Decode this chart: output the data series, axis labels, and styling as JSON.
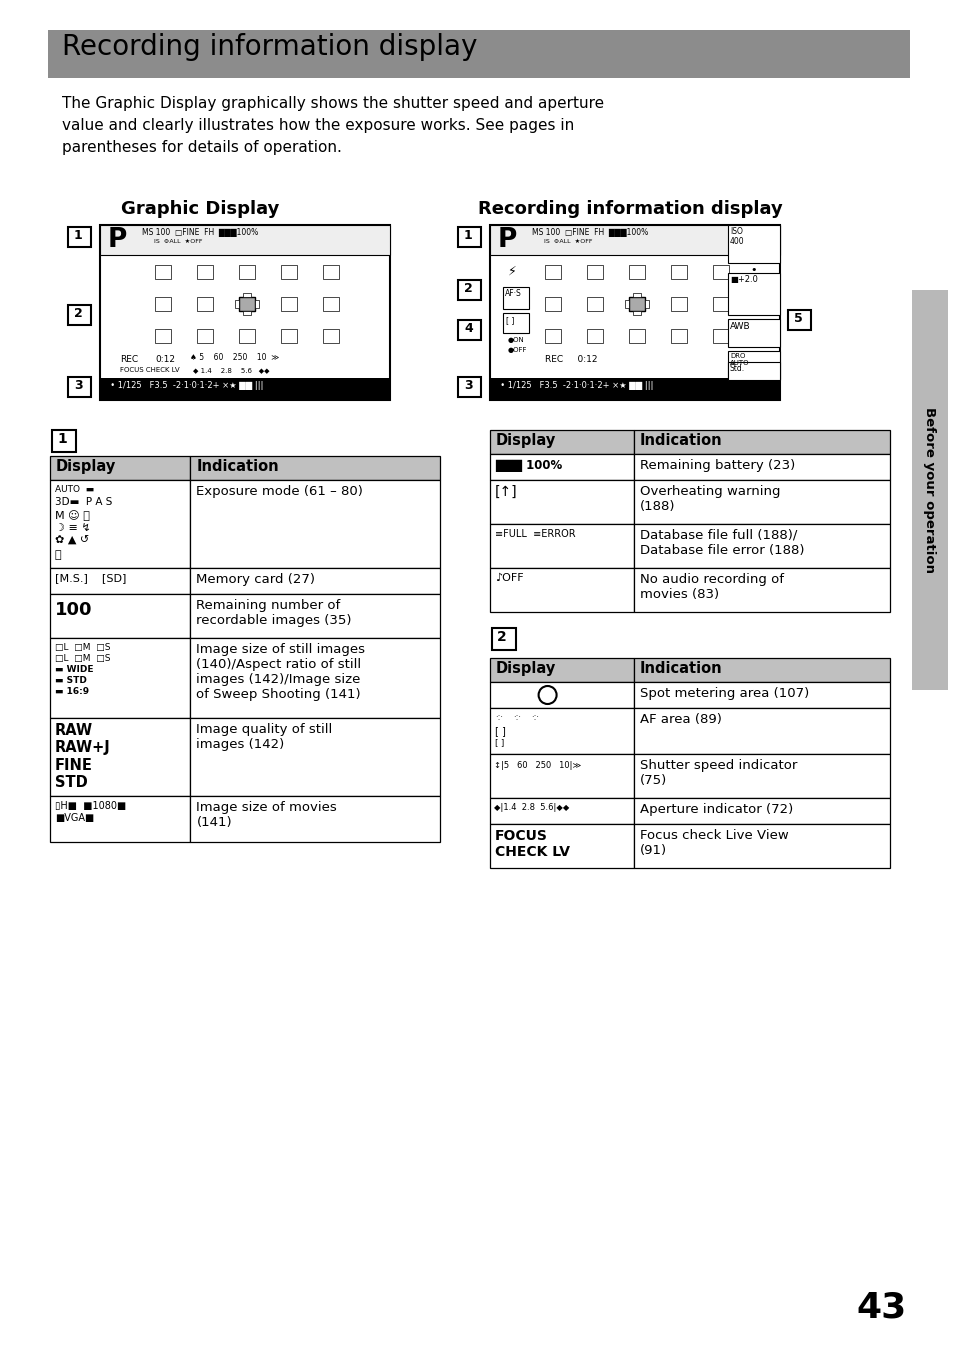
{
  "title": "Recording information display",
  "title_bg": "#8C8C8C",
  "page_bg": "#FFFFFF",
  "header_bg": "#C0C0C0",
  "body_lines": [
    "The Graphic Display graphically shows the shutter speed and aperture",
    "value and clearly illustrates how the exposure works. See pages in",
    "parentheses for details of operation."
  ],
  "col1_header": "Graphic Display",
  "col2_header": "Recording information display",
  "sidebar_text": "Before your operation",
  "page_number": "43"
}
